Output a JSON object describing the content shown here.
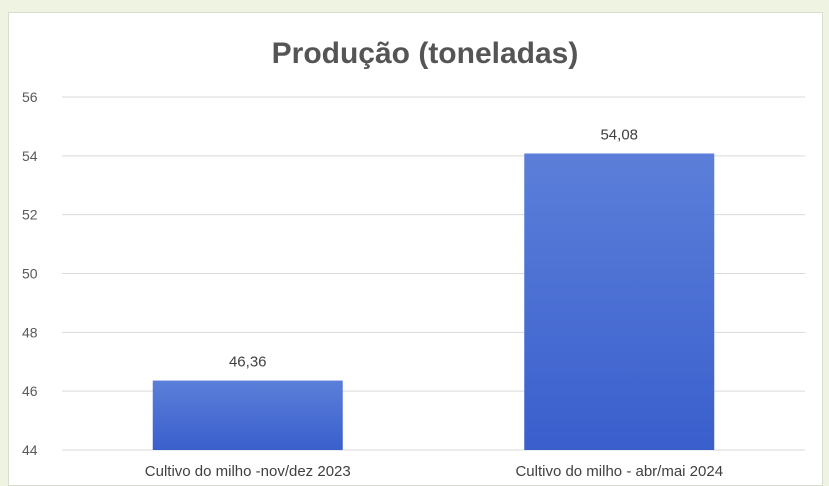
{
  "chart_data": {
    "type": "bar",
    "title": "Produção (toneladas)",
    "categories": [
      "Cultivo do milho -nov/dez 2023",
      "Cultivo do milho - abr/mai 2024"
    ],
    "values": [
      46.36,
      54.08
    ],
    "value_labels": [
      "46,36",
      "54,08"
    ],
    "y_ticks": [
      "44",
      "46",
      "48",
      "50",
      "52",
      "54",
      "56"
    ],
    "xlabel": "",
    "ylabel": "",
    "ylim": [
      44,
      56
    ],
    "grid": true,
    "legend": "none",
    "bar_color_top": "#5b7fd9",
    "bar_color_bottom": "#3a5fcd",
    "gridline_color": "#d9d9d9"
  }
}
